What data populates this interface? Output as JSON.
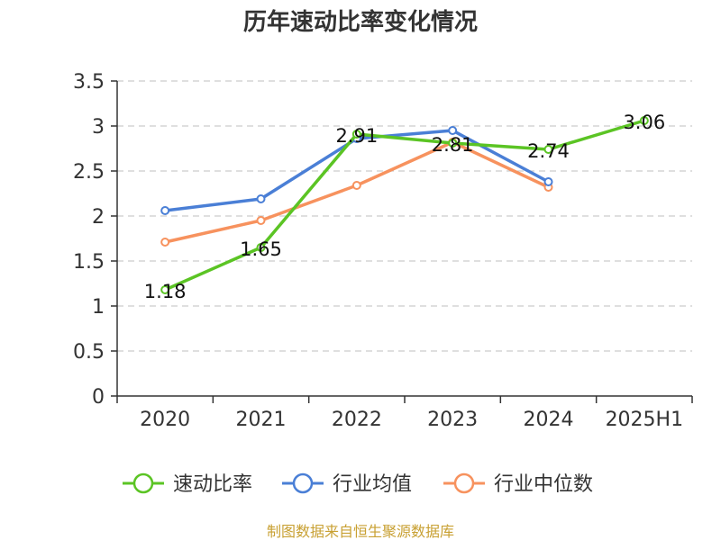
{
  "chart_data": {
    "type": "line",
    "title": "历年速动比率变化情况",
    "categories": [
      "2020",
      "2021",
      "2022",
      "2023",
      "2024",
      "2025H1"
    ],
    "ylim": [
      0,
      3.5
    ],
    "yticks": [
      "0",
      "0.5",
      "1",
      "1.5",
      "2",
      "2.5",
      "3",
      "3.5"
    ],
    "grid": true,
    "legend_position": "bottom",
    "series": [
      {
        "name": "速动比率",
        "color": "#5bc424",
        "values": [
          1.18,
          1.65,
          2.91,
          2.81,
          2.74,
          3.06
        ],
        "labels": [
          "1.18",
          "1.65",
          "2.91",
          "2.81",
          "2.74",
          "3.06"
        ]
      },
      {
        "name": "行业均值",
        "color": "#4a7fd6",
        "values": [
          2.06,
          2.19,
          2.86,
          2.95,
          2.38,
          null
        ]
      },
      {
        "name": "行业中位数",
        "color": "#f7925e",
        "values": [
          1.71,
          1.95,
          2.34,
          2.82,
          2.32,
          null
        ]
      }
    ],
    "source": "制图数据来自恒生聚源数据库"
  }
}
